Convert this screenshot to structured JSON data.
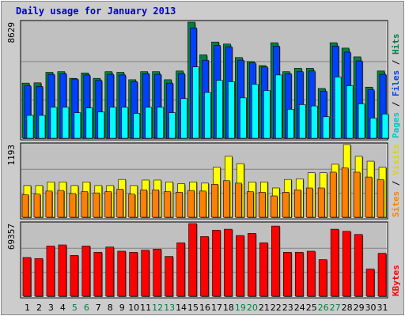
{
  "chart_data": {
    "type": "bar",
    "title": "Daily usage for January 2013",
    "categories": [
      "1",
      "2",
      "3",
      "4",
      "5",
      "6",
      "7",
      "8",
      "9",
      "10",
      "11",
      "12",
      "13",
      "14",
      "15",
      "16",
      "17",
      "18",
      "19",
      "20",
      "21",
      "22",
      "23",
      "24",
      "25",
      "26",
      "27",
      "28",
      "29",
      "30",
      "31"
    ],
    "weekend_categories": [
      "5",
      "6",
      "12",
      "13",
      "19",
      "20",
      "26",
      "27"
    ],
    "panels": [
      {
        "name": "hits-files-pages",
        "ymax_label": "8629",
        "ymax": 8629,
        "series": [
          {
            "name": "Hits",
            "color": "#008040",
            "values": [
              4100,
              4120,
              4900,
              4950,
              4450,
              4850,
              4450,
              4950,
              4900,
              4350,
              4950,
              4950,
              4350,
              5000,
              8629,
              6200,
              7150,
              7000,
              6000,
              5700,
              5400,
              7100,
              4950,
              5200,
              5200,
              3700,
              7100,
              6700,
              6050,
              3800,
              5000
            ]
          },
          {
            "name": "Files",
            "color": "#0040ff",
            "values": [
              3900,
              3850,
              4750,
              4800,
              4400,
              4700,
              4300,
              4750,
              4700,
              4200,
              4800,
              4750,
              4100,
              4800,
              8200,
              5800,
              6900,
              6800,
              5800,
              5600,
              5300,
              6850,
              4800,
              4950,
              5000,
              3500,
              6850,
              6400,
              5750,
              3600,
              4750
            ]
          },
          {
            "name": "Pages",
            "color": "#00ffff",
            "values": [
              1700,
              1700,
              2300,
              2300,
              1900,
              2250,
              1950,
              2300,
              2300,
              1850,
              2300,
              2300,
              1900,
              2950,
              5300,
              3400,
              4300,
              4200,
              3000,
              4000,
              3550,
              4700,
              2150,
              2500,
              2400,
              1600,
              4550,
              3900,
              2550,
              1500,
              1800
            ]
          }
        ]
      },
      {
        "name": "visits-sites",
        "ymax_label": "1193",
        "ymax": 1193,
        "series": [
          {
            "name": "Visits",
            "color": "#ffff00",
            "values": [
              520,
              520,
              580,
              580,
              520,
              580,
              520,
              520,
              620,
              520,
              610,
              610,
              580,
              550,
              580,
              560,
              820,
              1000,
              880,
              580,
              580,
              480,
              620,
              630,
              730,
              730,
              870,
              1193,
              1000,
              920,
              820
            ]
          },
          {
            "name": "Sites",
            "color": "#ff8000",
            "values": [
              370,
              380,
              430,
              440,
              390,
              420,
              400,
              420,
              460,
              380,
              450,
              450,
              420,
              410,
              440,
              430,
              540,
              600,
              560,
              420,
              410,
              350,
              410,
              450,
              480,
              480,
              740,
              810,
              740,
              660,
              620
            ]
          }
        ]
      },
      {
        "name": "kbytes",
        "ymax_label": "69357",
        "ymax": 69357,
        "series": [
          {
            "name": "KBytes",
            "color": "#ff0000",
            "values": [
              37000,
              36000,
              48000,
              49000,
              39000,
              48000,
              42000,
              47000,
              43000,
              42000,
              44000,
              45000,
              38000,
              51000,
              69357,
              57000,
              63000,
              64000,
              58000,
              60000,
              51000,
              67000,
              42000,
              42000,
              43000,
              35000,
              64000,
              62000,
              59000,
              26000,
              41000
            ]
          }
        ]
      }
    ],
    "legend": {
      "panel1": [
        {
          "text": "Pages",
          "color": "#00c8c8"
        },
        {
          "text": " / ",
          "color": "#000000"
        },
        {
          "text": "Files",
          "color": "#0040ff"
        },
        {
          "text": " / ",
          "color": "#000000"
        },
        {
          "text": "Hits",
          "color": "#008040"
        }
      ],
      "panel2": [
        {
          "text": "Sites",
          "color": "#ff8000"
        },
        {
          "text": " / ",
          "color": "#000000"
        },
        {
          "text": "Visits",
          "color": "#d8d800"
        }
      ],
      "panel3": [
        {
          "text": "KBytes",
          "color": "#ff0000"
        }
      ]
    },
    "weekday_label_color": "#000000",
    "weekend_label_color": "#008040",
    "background_color": "#cccccc",
    "plot_color": "#c0c0c0"
  }
}
